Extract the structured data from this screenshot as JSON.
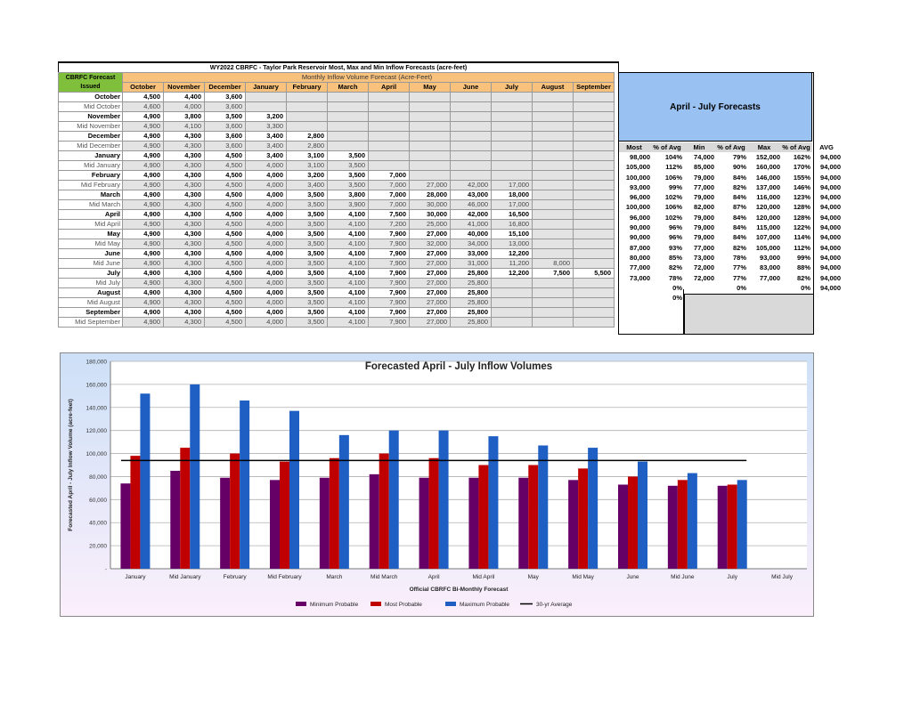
{
  "table": {
    "title": "WY2022 CBRFC - Taylor Park Reservoir Most, Max and Min Inflow Forecasts (acre-feet)",
    "issued_header": "CBRFC Forecast Issued",
    "monthly_header": "Monthly Inflow Volume Forecast (Acre-Feet)",
    "months": [
      "October",
      "November",
      "December",
      "January",
      "February",
      "March",
      "April",
      "May",
      "June",
      "July",
      "August",
      "September"
    ],
    "rows": [
      {
        "label": "October",
        "type": "bold",
        "vals": [
          "4,500",
          "4,400",
          "3,600",
          "",
          "",
          "",
          "",
          "",
          "",
          "",
          "",
          ""
        ]
      },
      {
        "label": "Mid October",
        "type": "mid",
        "vals": [
          "4,600",
          "4,000",
          "3,600",
          "",
          "",
          "",
          "",
          "",
          "",
          "",
          "",
          ""
        ]
      },
      {
        "label": "November",
        "type": "bold",
        "vals": [
          "4,900",
          "3,800",
          "3,500",
          "3,200",
          "",
          "",
          "",
          "",
          "",
          "",
          "",
          ""
        ]
      },
      {
        "label": "Mid November",
        "type": "mid",
        "vals": [
          "4,900",
          "4,100",
          "3,600",
          "3,300",
          "",
          "",
          "",
          "",
          "",
          "",
          "",
          ""
        ]
      },
      {
        "label": "December",
        "type": "bold",
        "vals": [
          "4,900",
          "4,300",
          "3,600",
          "3,400",
          "2,800",
          "",
          "",
          "",
          "",
          "",
          "",
          ""
        ]
      },
      {
        "label": "Mid December",
        "type": "mid",
        "vals": [
          "4,900",
          "4,300",
          "3,600",
          "3,400",
          "2,800",
          "",
          "",
          "",
          "",
          "",
          "",
          ""
        ]
      },
      {
        "label": "January",
        "type": "bold",
        "vals": [
          "4,900",
          "4,300",
          "4,500",
          "3,400",
          "3,100",
          "3,500",
          "",
          "",
          "",
          "",
          "",
          ""
        ]
      },
      {
        "label": "Mid January",
        "type": "mid",
        "vals": [
          "4,900",
          "4,300",
          "4,500",
          "4,000",
          "3,100",
          "3,500",
          "",
          "",
          "",
          "",
          "",
          ""
        ]
      },
      {
        "label": "February",
        "type": "bold",
        "vals": [
          "4,900",
          "4,300",
          "4,500",
          "4,000",
          "3,200",
          "3,500",
          "7,000",
          "",
          "",
          "",
          "",
          ""
        ]
      },
      {
        "label": "Mid February",
        "type": "mid",
        "vals": [
          "4,900",
          "4,300",
          "4,500",
          "4,000",
          "3,400",
          "3,500",
          "7,000",
          "27,000",
          "42,000",
          "17,000",
          "",
          ""
        ]
      },
      {
        "label": "March",
        "type": "bold",
        "vals": [
          "4,900",
          "4,300",
          "4,500",
          "4,000",
          "3,500",
          "3,800",
          "7,000",
          "28,000",
          "43,000",
          "18,000",
          "",
          ""
        ]
      },
      {
        "label": "Mid March",
        "type": "mid",
        "vals": [
          "4,900",
          "4,300",
          "4,500",
          "4,000",
          "3,500",
          "3,900",
          "7,000",
          "30,000",
          "46,000",
          "17,000",
          "",
          ""
        ]
      },
      {
        "label": "April",
        "type": "bold",
        "vals": [
          "4,900",
          "4,300",
          "4,500",
          "4,000",
          "3,500",
          "4,100",
          "7,500",
          "30,000",
          "42,000",
          "16,500",
          "",
          ""
        ]
      },
      {
        "label": "Mid April",
        "type": "mid",
        "vals": [
          "4,900",
          "4,300",
          "4,500",
          "4,000",
          "3,500",
          "4,100",
          "7,200",
          "25,000",
          "41,000",
          "16,800",
          "",
          ""
        ]
      },
      {
        "label": "May",
        "type": "bold",
        "vals": [
          "4,900",
          "4,300",
          "4,500",
          "4,000",
          "3,500",
          "4,100",
          "7,900",
          "27,000",
          "40,000",
          "15,100",
          "",
          ""
        ]
      },
      {
        "label": "Mid May",
        "type": "mid",
        "vals": [
          "4,900",
          "4,300",
          "4,500",
          "4,000",
          "3,500",
          "4,100",
          "7,900",
          "32,000",
          "34,000",
          "13,000",
          "",
          ""
        ]
      },
      {
        "label": "June",
        "type": "bold",
        "vals": [
          "4,900",
          "4,300",
          "4,500",
          "4,000",
          "3,500",
          "4,100",
          "7,900",
          "27,000",
          "33,000",
          "12,200",
          "",
          ""
        ]
      },
      {
        "label": "Mid June",
        "type": "mid",
        "vals": [
          "4,900",
          "4,300",
          "4,500",
          "4,000",
          "3,500",
          "4,100",
          "7,900",
          "27,000",
          "31,000",
          "11,200",
          "8,000",
          ""
        ]
      },
      {
        "label": "July",
        "type": "bold",
        "vals": [
          "4,900",
          "4,300",
          "4,500",
          "4,000",
          "3,500",
          "4,100",
          "7,900",
          "27,000",
          "25,800",
          "12,200",
          "7,500",
          "5,500"
        ]
      },
      {
        "label": "Mid July",
        "type": "mid",
        "vals": [
          "4,900",
          "4,300",
          "4,500",
          "4,000",
          "3,500",
          "4,100",
          "7,900",
          "27,000",
          "25,800",
          "",
          "",
          ""
        ]
      },
      {
        "label": "August",
        "type": "bold",
        "vals": [
          "4,900",
          "4,300",
          "4,500",
          "4,000",
          "3,500",
          "4,100",
          "7,900",
          "27,000",
          "25,800",
          "",
          "",
          ""
        ]
      },
      {
        "label": "Mid August",
        "type": "mid",
        "vals": [
          "4,900",
          "4,300",
          "4,500",
          "4,000",
          "3,500",
          "4,100",
          "7,900",
          "27,000",
          "25,800",
          "",
          "",
          ""
        ]
      },
      {
        "label": "September",
        "type": "bold",
        "vals": [
          "4,900",
          "4,300",
          "4,500",
          "4,000",
          "3,500",
          "4,100",
          "7,900",
          "27,000",
          "25,800",
          "",
          "",
          ""
        ]
      },
      {
        "label": "Mid September",
        "type": "mid",
        "vals": [
          "4,900",
          "4,300",
          "4,500",
          "4,000",
          "3,500",
          "4,100",
          "7,900",
          "27,000",
          "25,800",
          "",
          "",
          ""
        ]
      }
    ]
  },
  "apj": {
    "title": "April - July Forecasts",
    "headers": [
      "Most",
      "% of Avg",
      "Min",
      "% of Avg",
      "Max",
      "% of Avg",
      "AVG"
    ],
    "rows": [
      [
        "98,000",
        "104%",
        "74,000",
        "79%",
        "152,000",
        "162%",
        "94,000"
      ],
      [
        "105,000",
        "112%",
        "85,000",
        "90%",
        "160,000",
        "170%",
        "94,000"
      ],
      [
        "100,000",
        "106%",
        "79,000",
        "84%",
        "146,000",
        "155%",
        "94,000"
      ],
      [
        "93,000",
        "99%",
        "77,000",
        "82%",
        "137,000",
        "146%",
        "94,000"
      ],
      [
        "96,000",
        "102%",
        "79,000",
        "84%",
        "116,000",
        "123%",
        "94,000"
      ],
      [
        "100,000",
        "106%",
        "82,000",
        "87%",
        "120,000",
        "128%",
        "94,000"
      ],
      [
        "96,000",
        "102%",
        "79,000",
        "84%",
        "120,000",
        "128%",
        "94,000"
      ],
      [
        "90,000",
        "96%",
        "79,000",
        "84%",
        "115,000",
        "122%",
        "94,000"
      ],
      [
        "90,000",
        "96%",
        "79,000",
        "84%",
        "107,000",
        "114%",
        "94,000"
      ],
      [
        "87,000",
        "93%",
        "77,000",
        "82%",
        "105,000",
        "112%",
        "94,000"
      ],
      [
        "80,000",
        "85%",
        "73,000",
        "78%",
        "93,000",
        "99%",
        "94,000"
      ],
      [
        "77,000",
        "82%",
        "72,000",
        "77%",
        "83,000",
        "88%",
        "94,000"
      ],
      [
        "73,000",
        "78%",
        "72,000",
        "77%",
        "77,000",
        "82%",
        "94,000"
      ],
      [
        "",
        "0%",
        "",
        "0%",
        "",
        "0%",
        "94,000"
      ],
      [
        "",
        "0%",
        "",
        "",
        "",
        "",
        ""
      ]
    ]
  },
  "chart_data": {
    "type": "bar",
    "title": "Forecasted April - July Inflow Volumes",
    "xlabel": "Official CBRFC Bi-Monthly Forecast",
    "ylabel": "Forecasted April - July Inflow Volume (acre-feet)",
    "ylim": [
      0,
      180000
    ],
    "yticks": [
      "-",
      "20,000",
      "40,000",
      "60,000",
      "80,000",
      "100,000",
      "120,000",
      "140,000",
      "160,000",
      "180,000"
    ],
    "categories": [
      "January",
      "Mid January",
      "February",
      "Mid February",
      "March",
      "Mid March",
      "April",
      "Mid April",
      "May",
      "Mid May",
      "June",
      "Mid June",
      "July",
      "Mid July"
    ],
    "series": [
      {
        "name": "Minimum Probable",
        "color": "#660066",
        "values": [
          74000,
          85000,
          79000,
          77000,
          79000,
          82000,
          79000,
          79000,
          79000,
          77000,
          73000,
          72000,
          72000,
          null
        ]
      },
      {
        "name": "Most Probable",
        "color": "#c00000",
        "values": [
          98000,
          105000,
          100000,
          93000,
          96000,
          100000,
          96000,
          90000,
          90000,
          87000,
          80000,
          77000,
          73000,
          null
        ]
      },
      {
        "name": "Maximum Probable",
        "color": "#1f5fc4",
        "values": [
          152000,
          160000,
          146000,
          137000,
          116000,
          120000,
          120000,
          115000,
          107000,
          105000,
          93000,
          83000,
          77000,
          null
        ]
      }
    ],
    "average": {
      "name": "30-yr Average",
      "value": 94000,
      "color": "#000000"
    },
    "grid": true,
    "legend": "bottom"
  }
}
